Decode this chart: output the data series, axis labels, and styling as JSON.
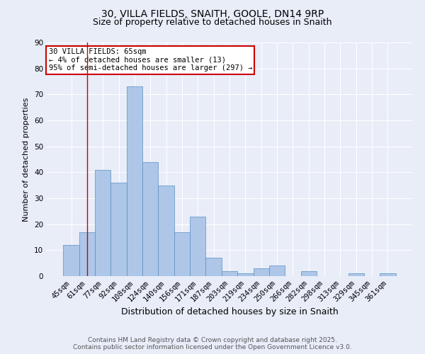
{
  "title1": "30, VILLA FIELDS, SNAITH, GOOLE, DN14 9RP",
  "title2": "Size of property relative to detached houses in Snaith",
  "xlabel": "Distribution of detached houses by size in Snaith",
  "ylabel": "Number of detached properties",
  "bar_labels": [
    "45sqm",
    "61sqm",
    "77sqm",
    "92sqm",
    "108sqm",
    "124sqm",
    "140sqm",
    "156sqm",
    "171sqm",
    "187sqm",
    "203sqm",
    "219sqm",
    "234sqm",
    "250sqm",
    "266sqm",
    "282sqm",
    "298sqm",
    "313sqm",
    "329sqm",
    "345sqm",
    "361sqm"
  ],
  "bar_values": [
    12,
    17,
    41,
    36,
    73,
    44,
    35,
    17,
    23,
    7,
    2,
    1,
    3,
    4,
    0,
    2,
    0,
    0,
    1,
    0,
    1
  ],
  "bar_color": "#aec6e8",
  "bar_edge_color": "#5a8fc2",
  "bar_width": 1.0,
  "ylim": [
    0,
    90
  ],
  "yticks": [
    0,
    10,
    20,
    30,
    40,
    50,
    60,
    70,
    80,
    90
  ],
  "red_line_x": 1.0,
  "annotation_text": "30 VILLA FIELDS: 65sqm\n← 4% of detached houses are smaller (13)\n95% of semi-detached houses are larger (297) →",
  "annotation_box_color": "#ffffff",
  "annotation_border_color": "#cc0000",
  "footnote1": "Contains HM Land Registry data © Crown copyright and database right 2025.",
  "footnote2": "Contains public sector information licensed under the Open Government Licence v3.0.",
  "bg_color": "#e8edf8",
  "grid_color": "#ffffff",
  "title1_fontsize": 10,
  "title2_fontsize": 9,
  "xlabel_fontsize": 9,
  "ylabel_fontsize": 8,
  "tick_fontsize": 7.5,
  "annotation_fontsize": 7.5,
  "footnote_fontsize": 6.5
}
